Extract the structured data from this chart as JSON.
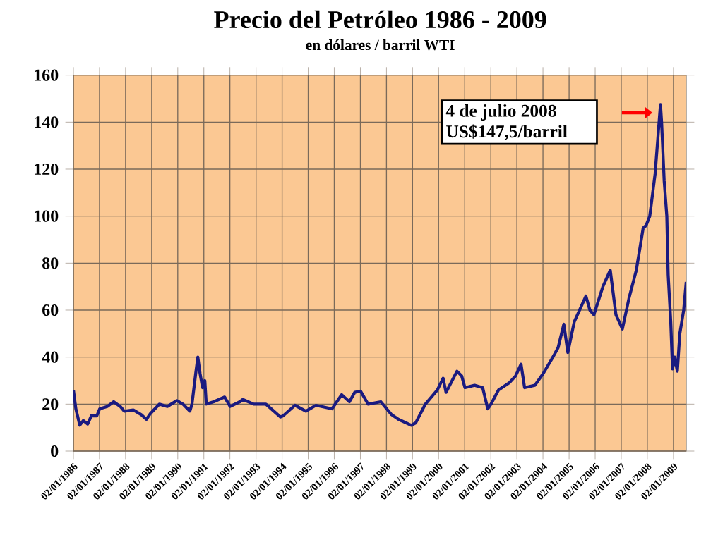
{
  "chart_data": {
    "type": "line",
    "title": "Precio del Petróleo 1986 - 2009",
    "subtitle": "en dólares / barril WTI",
    "annotations": [
      "4 de julio 2008 US$147,5/barril"
    ],
    "xlim": [
      "1986-01-02",
      "2009-06-30"
    ],
    "xticks": [
      {
        "value": "1986-01-02",
        "label": "02/01/1986"
      },
      {
        "value": "1987-01-02",
        "label": "02/01/1987"
      },
      {
        "value": "1988-01-02",
        "label": "02/01/1988"
      },
      {
        "value": "1989-01-02",
        "label": "02/01/1989"
      },
      {
        "value": "1990-01-02",
        "label": "02/01/1990"
      },
      {
        "value": "1991-01-02",
        "label": "02/01/1991"
      },
      {
        "value": "1992-01-02",
        "label": "02/01/1992"
      },
      {
        "value": "1993-01-02",
        "label": "02/01/1993"
      },
      {
        "value": "1994-01-02",
        "label": "02/01/1994"
      },
      {
        "value": "1995-01-02",
        "label": "02/01/1995"
      },
      {
        "value": "1996-01-02",
        "label": "02/01/1996"
      },
      {
        "value": "1997-01-02",
        "label": "02/01/1997"
      },
      {
        "value": "1998-01-02",
        "label": "02/01/1998"
      },
      {
        "value": "1999-01-02",
        "label": "02/01/1999"
      },
      {
        "value": "2000-01-02",
        "label": "02/01/2000"
      },
      {
        "value": "2001-01-02",
        "label": "02/01/2001"
      },
      {
        "value": "2002-01-02",
        "label": "02/01/2002"
      },
      {
        "value": "2003-01-02",
        "label": "02/01/2003"
      },
      {
        "value": "2004-01-02",
        "label": "02/01/2004"
      },
      {
        "value": "2005-01-02",
        "label": "02/01/2005"
      },
      {
        "value": "2006-01-02",
        "label": "02/01/2006"
      },
      {
        "value": "2007-01-02",
        "label": "02/01/2007"
      },
      {
        "value": "2008-01-02",
        "label": "02/01/2008"
      },
      {
        "value": "2009-01-02",
        "label": "02/01/2009"
      }
    ],
    "ylim": [
      0,
      160
    ],
    "yticks": [
      0,
      20,
      40,
      60,
      80,
      100,
      120,
      140,
      160
    ],
    "grid": true,
    "marker": "none",
    "line_style": "solid",
    "series": [
      {
        "color": "#1a1a80",
        "x": [
          "1986-01-02",
          "1986-02-05",
          "1986-04-01",
          "1986-05-20",
          "1986-07-20",
          "1986-09-10",
          "1986-11-25",
          "1987-01-05",
          "1987-04-20",
          "1987-07-20",
          "1987-10-20",
          "1987-12-15",
          "1988-04-20",
          "1988-08-10",
          "1988-10-20",
          "1988-12-15",
          "1989-04-20",
          "1989-08-10",
          "1989-12-20",
          "1990-03-15",
          "1990-06-20",
          "1990-07-20",
          "1990-09-10",
          "1990-10-10",
          "1990-11-10",
          "1990-12-15",
          "1991-01-16",
          "1991-02-05",
          "1991-05-20",
          "1991-10-20",
          "1992-01-05",
          "1992-05-20",
          "1992-07-01",
          "1992-12-01",
          "1993-05-20",
          "1993-12-10",
          "1994-01-15",
          "1994-07-01",
          "1994-12-01",
          "1995-04-20",
          "1995-12-01",
          "1996-04-15",
          "1996-08-01",
          "1996-10-15",
          "1997-01-05",
          "1997-04-20",
          "1997-10-15",
          "1998-03-15",
          "1998-06-20",
          "1998-12-15",
          "1999-02-15",
          "1999-07-01",
          "1999-12-15",
          "2000-03-05",
          "2000-04-15",
          "2000-09-15",
          "2000-11-20",
          "2001-01-05",
          "2001-05-20",
          "2001-09-10",
          "2001-11-20",
          "2002-01-05",
          "2002-04-20",
          "2002-09-15",
          "2002-12-15",
          "2003-03-01",
          "2003-04-20",
          "2003-09-10",
          "2004-01-05",
          "2004-05-20",
          "2004-08-01",
          "2004-10-20",
          "2004-12-15",
          "2005-03-15",
          "2005-08-25",
          "2005-10-20",
          "2005-12-15",
          "2006-04-20",
          "2006-08-01",
          "2006-10-20",
          "2007-01-18",
          "2007-04-20",
          "2007-08-01",
          "2007-11-05",
          "2007-12-15",
          "2008-02-05",
          "2008-04-20",
          "2008-07-04",
          "2008-07-20",
          "2008-08-25",
          "2008-10-01",
          "2008-10-20",
          "2008-11-25",
          "2008-12-20",
          "2009-01-20",
          "2009-02-25",
          "2009-04-01",
          "2009-05-25",
          "2009-06-30"
        ],
        "values": [
          26,
          18,
          11,
          13,
          11.5,
          15,
          15,
          18,
          19,
          21,
          19,
          17,
          17.5,
          15.5,
          13.5,
          16,
          20,
          19,
          21.5,
          20,
          17,
          20,
          33,
          40,
          33,
          27,
          30,
          20,
          21,
          23,
          19,
          21,
          22,
          20,
          20,
          14.5,
          15,
          19.5,
          17,
          19.5,
          18,
          24,
          21,
          25,
          25.5,
          20,
          21,
          15.5,
          13.5,
          11,
          12,
          20,
          26,
          31,
          25,
          34,
          32,
          27,
          28,
          27,
          18,
          20,
          26,
          29,
          32,
          37,
          27,
          28,
          33,
          40,
          44,
          54,
          42,
          55,
          66,
          60,
          58,
          70,
          77,
          58,
          52,
          65,
          77,
          95,
          96,
          100,
          118,
          147.5,
          140,
          115,
          100,
          75,
          55,
          35,
          40,
          34,
          50,
          60,
          72
        ]
      }
    ]
  }
}
